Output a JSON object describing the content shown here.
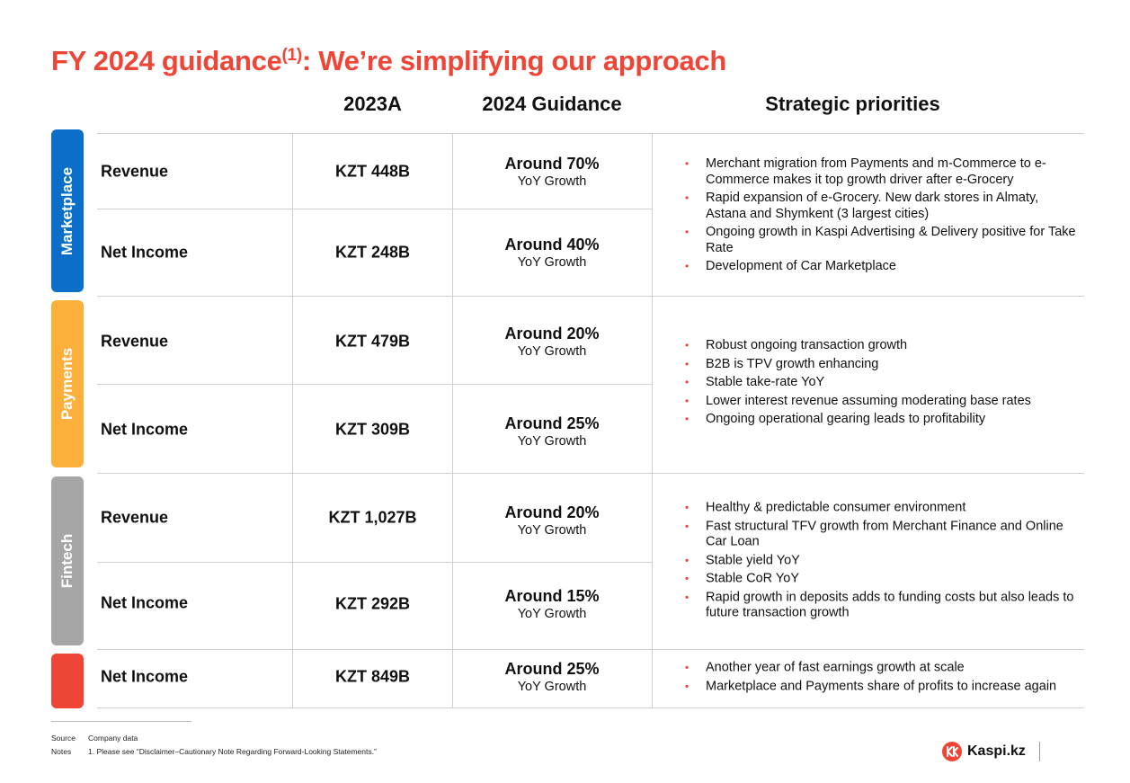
{
  "title": {
    "pre": "FY 2024 guidance",
    "sup": "(1)",
    "post": ": We’re simplifying our approach"
  },
  "columns": {
    "actual": "2023A",
    "guidance": "2024 Guidance",
    "priorities": "Strategic priorities"
  },
  "segments": {
    "marketplace": "Marketplace",
    "payments": "Payments",
    "fintech": "Fintech"
  },
  "colors": {
    "accent": "#ee4536",
    "marketplace": "#0b6fc9",
    "payments": "#fbb03b",
    "fintech": "#a6a6a6",
    "total": "#ee4536"
  },
  "rows": [
    {
      "metric": "Revenue",
      "value": "KZT 448B",
      "guidance": "Around 70%",
      "guidance_sub": "YoY Growth"
    },
    {
      "metric": "Net Income",
      "value": "KZT 248B",
      "guidance": "Around 40%",
      "guidance_sub": "YoY Growth"
    },
    {
      "metric": "Revenue",
      "value": "KZT 479B",
      "guidance": "Around 20%",
      "guidance_sub": "YoY Growth"
    },
    {
      "metric": "Net Income",
      "value": "KZT 309B",
      "guidance": "Around 25%",
      "guidance_sub": "YoY Growth"
    },
    {
      "metric": "Revenue",
      "value": "KZT 1,027B",
      "guidance": "Around 20%",
      "guidance_sub": "YoY Growth"
    },
    {
      "metric": "Net Income",
      "value": "KZT 292B",
      "guidance": "Around 15%",
      "guidance_sub": "YoY Growth"
    },
    {
      "metric": "Net Income",
      "value": "KZT 849B",
      "guidance": "Around 25%",
      "guidance_sub": "YoY Growth"
    }
  ],
  "priorities": {
    "marketplace": [
      "Merchant migration from Payments and m-Commerce to e-Commerce makes it top growth driver after e-Grocery",
      "Rapid expansion of e-Grocery. New dark stores in Almaty, Astana and Shymkent (3 largest cities)",
      "Ongoing growth in Kaspi Advertising & Delivery positive for Take Rate",
      "Development of Car Marketplace"
    ],
    "payments": [
      "Robust ongoing transaction growth",
      "B2B is TPV growth enhancing",
      "Stable take-rate YoY",
      "Lower interest revenue assuming moderating base rates",
      "Ongoing operational gearing leads to profitability"
    ],
    "fintech": [
      "Healthy & predictable consumer environment",
      "Fast structural TFV growth from Merchant Finance and Online Car Loan",
      "Stable yield YoY",
      "Stable CoR YoY",
      "Rapid growth in deposits adds to funding costs but also leads to future transaction growth"
    ],
    "total": [
      "Another year of fast earnings growth at scale",
      "Marketplace and Payments share of profits to increase again"
    ]
  },
  "footer": {
    "source_label": "Source",
    "source_text": "Company data",
    "notes_label": "Notes",
    "notes_text": "1. Please see “Disclaimer–Cautionary Note Regarding Forward-Looking Statements.”"
  },
  "brand": {
    "name": "Kaspi.kz",
    "icon": "kaspi-logo-icon"
  }
}
